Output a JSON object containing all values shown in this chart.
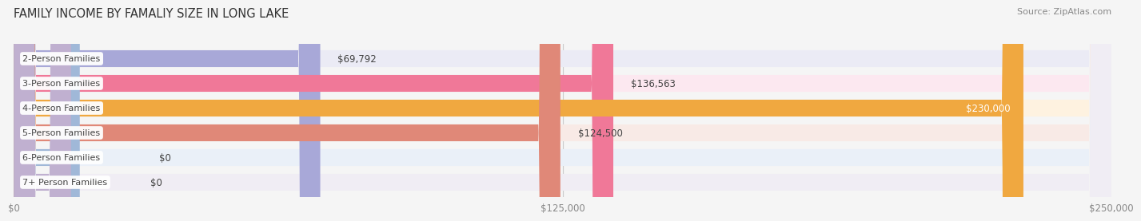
{
  "title": "FAMILY INCOME BY FAMALIY SIZE IN LONG LAKE",
  "source": "Source: ZipAtlas.com",
  "categories": [
    "2-Person Families",
    "3-Person Families",
    "4-Person Families",
    "5-Person Families",
    "6-Person Families",
    "7+ Person Families"
  ],
  "values": [
    69792,
    136563,
    230000,
    124500,
    0,
    0
  ],
  "bar_colors": [
    "#a8a8d8",
    "#f07898",
    "#f0a840",
    "#e08878",
    "#a0b8d8",
    "#c0b0d0"
  ],
  "bar_bg_colors": [
    "#ebebf5",
    "#fce8f0",
    "#fef2e0",
    "#f8eae6",
    "#eaf0f8",
    "#f0edf4"
  ],
  "value_labels": [
    "$69,792",
    "$136,563",
    "$230,000",
    "$124,500",
    "$0",
    "$0"
  ],
  "stub_values": [
    0,
    0,
    0,
    0,
    15000,
    13000
  ],
  "xlim": [
    0,
    250000
  ],
  "xticks": [
    0,
    125000,
    250000
  ],
  "xtick_labels": [
    "$0",
    "$125,000",
    "$250,000"
  ],
  "background_color": "#f5f5f5",
  "title_fontsize": 10.5,
  "label_fontsize": 8,
  "value_fontsize": 8.5,
  "source_fontsize": 8
}
